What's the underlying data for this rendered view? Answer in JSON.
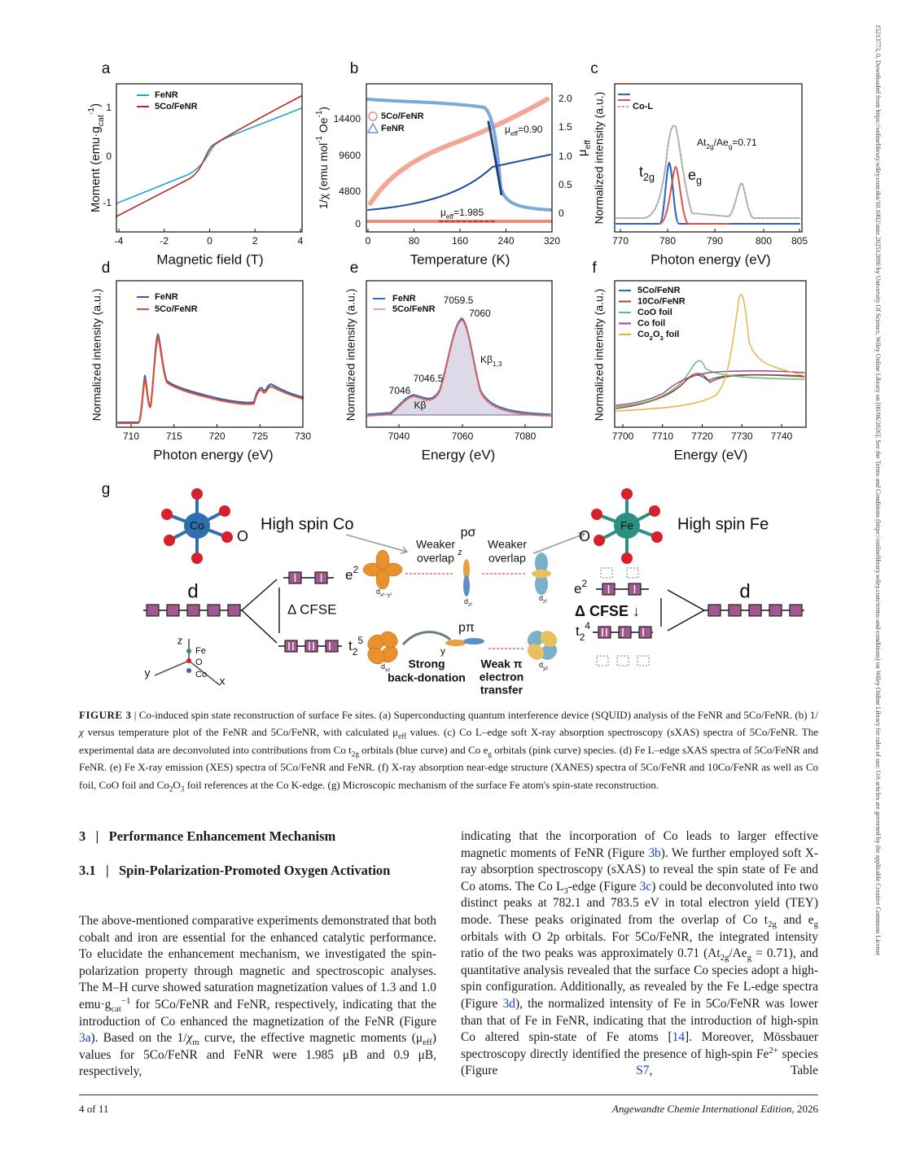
{
  "side_note": "15213773, 0, Downloaded from https://onlinelibrary.wiley.com/doi/10.1002/anie.202512890 by University Of Science, Wiley Online Library on [06/06/2026]. See the Terms and Conditions (https://onlinelibrary.wiley.com/terms-and-conditions) on Wiley Online Library for rules of use; OA articles are governed by the applicable Creative Commons License",
  "figure": {
    "a": {
      "letter": "a",
      "legend": [
        "FeNR",
        "5Co/FeNR"
      ],
      "yticks": [
        "1",
        "0",
        "-1"
      ],
      "xticks": [
        "-4",
        "-2",
        "0",
        "2",
        "4"
      ],
      "xlabel": "Magnetic field (T)",
      "ylabel": [
        "Moment (emu·g",
        {
          "sub": "cat"
        },
        {
          "sup": "-1"
        },
        ")"
      ]
    },
    "b": {
      "letter": "b",
      "legend": [
        "5Co/FeNR",
        "FeNR"
      ],
      "yticks": [
        "14400",
        "9600",
        "4800",
        "0"
      ],
      "y2ticks": [
        "2.0",
        "1.5",
        "1.0",
        "0.5",
        "0"
      ],
      "xticks": [
        "0",
        "80",
        "160",
        "240",
        "320"
      ],
      "xlabel": "Temperature (K)",
      "ylabel": [
        "1/χ (emu mol",
        {
          "sup": "-1"
        },
        " Oe",
        {
          "sup": "-1"
        },
        ")"
      ],
      "y2label": [
        "μ",
        {
          "sub": "eff"
        }
      ],
      "notes": [
        [
          "μ",
          {
            "sub": "eff"
          },
          "=0.90"
        ],
        [
          "μ",
          {
            "sub": "eff"
          },
          "=1.985"
        ]
      ]
    },
    "c": {
      "letter": "c",
      "legend": [
        "Co-L"
      ],
      "xticks": [
        "770",
        "780",
        "790",
        "800",
        "805"
      ],
      "xlabel": "Photon energy (eV)",
      "ylabel": "Normalized intensity (a.u.)",
      "notes": [
        [
          "At",
          {
            "sub": "2g"
          },
          "/Ae",
          {
            "sub": "g"
          },
          "=0.71"
        ],
        [
          "t",
          {
            "sub": "2g"
          }
        ],
        [
          "e",
          {
            "sub": "g"
          }
        ]
      ]
    },
    "d": {
      "letter": "d",
      "legend": [
        "FeNR",
        "5Co/FeNR"
      ],
      "xticks": [
        "710",
        "715",
        "720",
        "725",
        "730"
      ],
      "xlabel": "Photon energy (eV)",
      "ylabel": "Normalized intensity (a.u.)"
    },
    "e": {
      "letter": "e",
      "legend": [
        "FeNR",
        "5Co/FeNR"
      ],
      "xticks": [
        "7040",
        "7060",
        "7080"
      ],
      "xlabel": "Energy (eV)",
      "ylabel": "Normalized intensity (a.u.)",
      "notes": [
        "7059.5",
        "7060",
        "7046.5",
        "7046",
        "Kβ",
        [
          "Kβ",
          {
            "sub": "1,3"
          }
        ]
      ]
    },
    "f": {
      "letter": "f",
      "legend": [
        "5Co/FeNR",
        "10Co/FeNR",
        "CoO foil",
        "Co foil",
        [
          "Co",
          {
            "sub": "2"
          },
          "O",
          {
            "sub": "3"
          },
          " foil"
        ]
      ],
      "xticks": [
        "7700",
        "7710",
        "7720",
        "7730",
        "7740"
      ],
      "xlabel": "Energy (eV)",
      "ylabel": "Normalized intensity (a.u.)"
    },
    "g": {
      "letter": "g",
      "high_spin_co": "High spin Co",
      "high_spin_fe": "High spin Fe",
      "o_left": "O",
      "o_right": "O",
      "co_atom": "Co",
      "fe_atom": "Fe",
      "weaker_left": [
        "Weaker",
        "overlap"
      ],
      "weaker_right": [
        "Weaker",
        "overlap"
      ],
      "p_sigma": "pσ",
      "z_orb": "z",
      "p_pi": "pπ",
      "y_orb": "y",
      "d_left": "d",
      "e2_left": [
        "e",
        {
          "sup": "2"
        }
      ],
      "cfse_left": "Δ CFSE",
      "t25": [
        "t",
        {
          "sub": "2"
        },
        {
          "sup": "5"
        }
      ],
      "back_donation": [
        "Strong",
        "back-donation"
      ],
      "weak_pi": [
        "Weak π",
        "electron",
        "transfer"
      ],
      "e2_right": [
        "e",
        {
          "sup": "2"
        }
      ],
      "cfse_right": "Δ CFSE ↓",
      "t24": [
        "t",
        {
          "sub": "2"
        },
        {
          "sup": "4"
        }
      ],
      "d_right": "d",
      "axis_z": "z",
      "axis_fe": "Fe",
      "axis_o": "O",
      "axis_co": "Co",
      "axis_y": "y",
      "axis_x": "x",
      "orb_dx2y2": [
        "d",
        {
          "sub": "x²−y²"
        }
      ],
      "orb_dz2_left": [
        "d",
        {
          "sub": "z²"
        }
      ],
      "orb_dz2_right": [
        "d",
        {
          "sub": "z²"
        }
      ],
      "orb_dxz": [
        "d",
        {
          "sub": "xz"
        }
      ],
      "orb_dyz": [
        "d",
        {
          "sub": "yz"
        }
      ]
    }
  },
  "caption": [
    {
      "b": "FIGURE 3"
    },
    "  |  Co-induced spin state reconstruction of surface Fe sites. (a) Superconducting quantum interference device (SQUID) analysis of the FeNR and 5Co/FeNR. (b) 1/",
    {
      "i": "χ"
    },
    " versus temperature plot of the FeNR and 5Co/FeNR, with calculated μ",
    {
      "sub": "eff"
    },
    " values. (c) Co L–edge soft X-ray absorption spectroscopy (sXAS) spectra of 5Co/FeNR. The experimental data are deconvoluted into contributions from Co t",
    {
      "sub": "2g"
    },
    " orbitals (blue curve) and Co e",
    {
      "sub": "g"
    },
    " orbitals (pink curve) species. (d) Fe L–edge sXAS spectra of 5Co/FeNR and FeNR. (e) Fe X-ray emission (XES) spectra of 5Co/FeNR and FeNR. (f) X-ray absorption near-edge structure (XANES) spectra of 5Co/FeNR and 10Co/FeNR as well as Co foil, CoO foil and Co",
    {
      "sub": "2"
    },
    "O",
    {
      "sub": "3"
    },
    " foil references at the Co K-edge. (g) Microscopic mechanism of the surface Fe atom's spin-state reconstruction."
  ],
  "left": {
    "heading": "3   |   Performance Enhancement Mechanism",
    "subheading": "3.1   |   Spin-Polarization-Promoted Oxygen Activation",
    "paragraph": [
      "The above-mentioned comparative experiments demonstrated that both cobalt and iron are essential for the enhanced catalytic performance. To elucidate the enhancement mechanism, we investigated the spin-polarization property through magnetic and spectroscopic analyses. The M–H curve showed saturation magnetization values of 1.3 and 1.0 emu·g",
      {
        "sub": "cat"
      },
      {
        "sup": "−1"
      },
      " for 5Co/FeNR and FeNR, respectively, indicating that the introduction of Co enhanced the magnetization of the FeNR (Figure ",
      {
        "a": "3a"
      },
      "). Based on the 1/",
      {
        "i": "χ"
      },
      {
        "sub": "m"
      },
      " curve, the effective magnetic moments (μ",
      {
        "sub": "eff"
      },
      ") values for 5Co/FeNR and FeNR were 1.985 μB and 0.9 μB, respectively,"
    ]
  },
  "right": {
    "paragraph": [
      "indicating that the incorporation of Co leads to larger effective magnetic moments of FeNR (Figure ",
      {
        "a": "3b"
      },
      "). We further employed soft X-ray absorption spectroscopy (sXAS) to reveal the spin state of Fe and Co atoms. The Co L",
      {
        "sub": "3"
      },
      "-edge (Figure ",
      {
        "a": "3c"
      },
      ") could be deconvoluted into two distinct peaks at 782.1 and 783.5 eV in total electron yield (TEY) mode. These peaks originated from the overlap of Co t",
      {
        "sub": "2g"
      },
      " and e",
      {
        "sub": "g"
      },
      " orbitals with O 2p orbitals. For 5Co/FeNR, the integrated intensity ratio of the two peaks was approximately 0.71 (At",
      {
        "sub": "2g"
      },
      "/Ae",
      {
        "sub": "g"
      },
      " = 0.71), and quantitative analysis revealed that the surface Co species adopt a high-spin configuration. Additionally, as revealed by the Fe L-edge spectra (Figure ",
      {
        "a": "3d"
      },
      "), the normalized intensity of Fe in 5Co/FeNR was lower than that of Fe in FeNR, indicating that the introduction of high-spin Co altered spin-state of Fe atoms [",
      {
        "a": "14"
      },
      "]. Moreover, Mössbauer spectroscopy directly identified the presence of high-spin Fe",
      {
        "sup": "2+"
      },
      " species (Figure ",
      {
        "a": "S7"
      },
      ", Table"
    ]
  },
  "footer": {
    "page": "4 of 11",
    "journal": [
      {
        "i": "Angewandte Chemie International Edition"
      },
      ", 2026"
    ]
  }
}
